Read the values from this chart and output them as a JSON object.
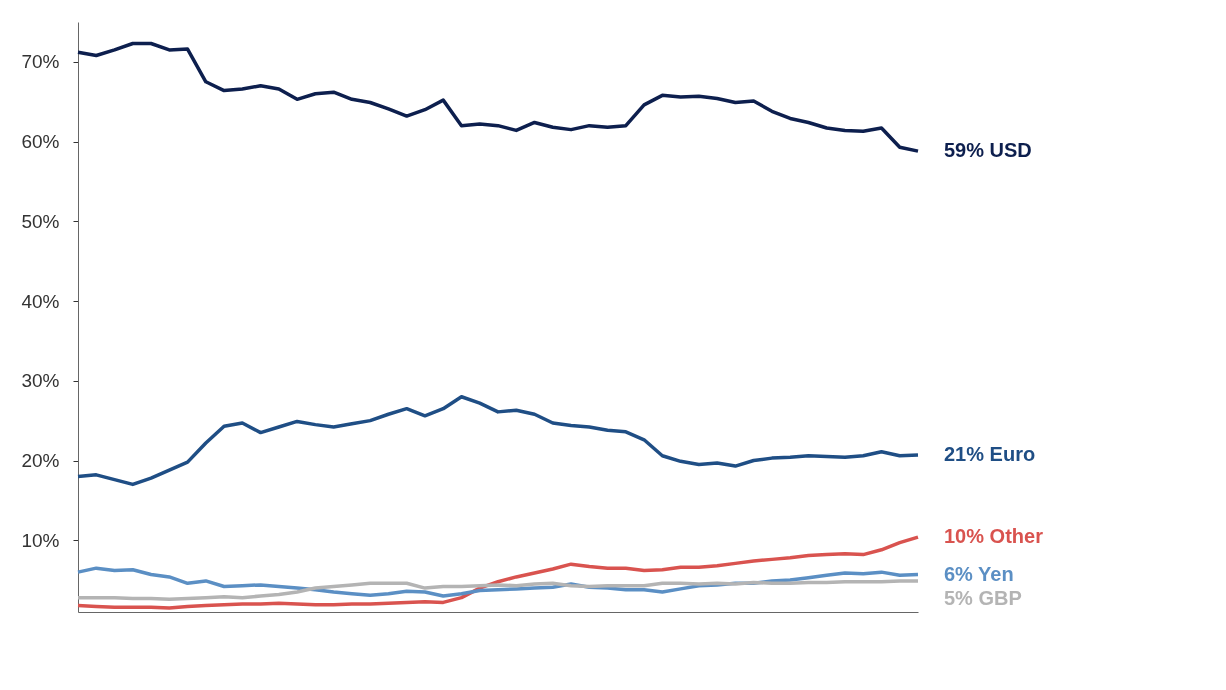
{
  "chart_data": {
    "type": "line",
    "categories": [
      null,
      null,
      null,
      null,
      null,
      null,
      null,
      null,
      null,
      null,
      null,
      null,
      null,
      null,
      null,
      null,
      null,
      null,
      null,
      null,
      null,
      null,
      null,
      null,
      null,
      null,
      null,
      null,
      null,
      null,
      null,
      null,
      null,
      null,
      null,
      null,
      null,
      null,
      null,
      null,
      null,
      null,
      null,
      null,
      null,
      null,
      null
    ],
    "series": [
      {
        "name": "59% USD",
        "color": "#0d1f4e",
        "values": [
          71.2,
          70.8,
          71.5,
          72.3,
          72.3,
          71.5,
          71.6,
          67.5,
          66.4,
          66.6,
          67.0,
          66.6,
          65.3,
          66.0,
          66.2,
          65.3,
          64.9,
          64.1,
          63.2,
          64.0,
          65.2,
          62.0,
          62.2,
          62.0,
          61.4,
          62.4,
          61.8,
          61.5,
          62.0,
          61.8,
          62.0,
          64.6,
          65.8,
          65.6,
          65.7,
          65.4,
          64.9,
          65.1,
          63.8,
          62.9,
          62.4,
          61.7,
          61.4,
          61.3,
          61.7,
          59.3,
          58.8
        ]
      },
      {
        "name": "21% Euro",
        "color": "#1f4e85",
        "values": [
          18.0,
          18.2,
          17.6,
          17.0,
          17.8,
          18.8,
          19.8,
          22.2,
          24.3,
          24.7,
          23.5,
          24.2,
          24.9,
          24.5,
          24.2,
          24.6,
          25.0,
          25.8,
          26.5,
          25.6,
          26.5,
          28.0,
          27.2,
          26.1,
          26.3,
          25.8,
          24.7,
          24.4,
          24.2,
          23.8,
          23.6,
          22.6,
          20.6,
          19.9,
          19.5,
          19.7,
          19.3,
          20.0,
          20.3,
          20.4,
          20.6,
          20.5,
          20.4,
          20.6,
          21.1,
          20.6,
          20.7
        ]
      },
      {
        "name": "10% Other",
        "color": "#d9534f",
        "values": [
          1.8,
          1.7,
          1.6,
          1.6,
          1.6,
          1.5,
          1.7,
          1.8,
          1.9,
          2.0,
          2.0,
          2.1,
          2.0,
          1.9,
          1.9,
          2.0,
          2.0,
          2.1,
          2.2,
          2.3,
          2.2,
          2.8,
          4.0,
          4.8,
          5.4,
          5.9,
          6.4,
          7.0,
          6.7,
          6.5,
          6.5,
          6.2,
          6.3,
          6.6,
          6.6,
          6.8,
          7.1,
          7.4,
          7.6,
          7.8,
          8.1,
          8.2,
          8.3,
          8.2,
          8.8,
          9.7,
          10.4
        ]
      },
      {
        "name": "6% Yen",
        "color": "#5b8fc4",
        "values": [
          6.0,
          6.5,
          6.2,
          6.3,
          5.7,
          5.4,
          4.6,
          4.9,
          4.2,
          4.3,
          4.4,
          4.2,
          4.0,
          3.8,
          3.5,
          3.3,
          3.1,
          3.3,
          3.6,
          3.5,
          3.0,
          3.3,
          3.7,
          3.8,
          3.9,
          4.0,
          4.1,
          4.5,
          4.1,
          4.0,
          3.8,
          3.8,
          3.5,
          3.9,
          4.3,
          4.4,
          4.6,
          4.6,
          4.9,
          5.0,
          5.3,
          5.6,
          5.9,
          5.8,
          6.0,
          5.6,
          5.7
        ]
      },
      {
        "name": "5% GBP",
        "color": "#b4b4b4",
        "values": [
          2.8,
          2.8,
          2.8,
          2.7,
          2.7,
          2.6,
          2.7,
          2.8,
          2.9,
          2.8,
          3.0,
          3.2,
          3.5,
          4.0,
          4.2,
          4.4,
          4.6,
          4.6,
          4.6,
          4.0,
          4.2,
          4.2,
          4.3,
          4.4,
          4.3,
          4.5,
          4.6,
          4.3,
          4.2,
          4.3,
          4.3,
          4.3,
          4.6,
          4.6,
          4.5,
          4.6,
          4.5,
          4.7,
          4.6,
          4.6,
          4.7,
          4.7,
          4.8,
          4.8,
          4.8,
          4.9,
          4.9
        ]
      }
    ],
    "ylim": [
      1,
      75
    ],
    "yticks": [
      {
        "value": 10,
        "label": "10%"
      },
      {
        "value": 20,
        "label": "20%"
      },
      {
        "value": 30,
        "label": "30%"
      },
      {
        "value": 40,
        "label": "40%"
      },
      {
        "value": 50,
        "label": "50%"
      },
      {
        "value": 60,
        "label": "60%"
      },
      {
        "value": 70,
        "label": "70%"
      }
    ],
    "tick_labels": "y",
    "legend": false
  }
}
